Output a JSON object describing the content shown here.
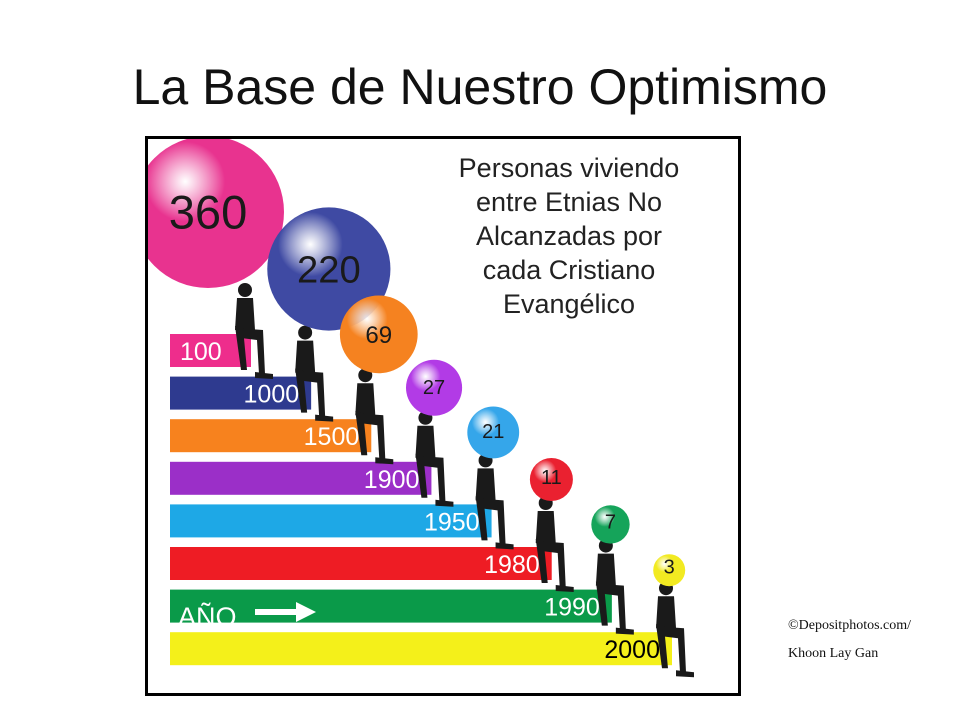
{
  "title": "La Base de Nuestro Optimismo",
  "credit": {
    "line1": "©Depositphotos.com/",
    "line2": "Khoon Lay Gan"
  },
  "chart_data": {
    "type": "bar",
    "title": "Personas viviendo entre Etnias No Alcanzadas por cada Cristiano Evangélico",
    "title_lines": [
      "Personas viviendo",
      "entre Etnias No",
      "Alcanzadas por",
      "cada Cristiano",
      "Evangélico"
    ],
    "axis_label": "AÑO",
    "categories": [
      "100",
      "1000",
      "1500",
      "1900",
      "1950",
      "1980",
      "1990",
      "2000"
    ],
    "values": [
      360,
      220,
      69,
      27,
      21,
      11,
      7,
      3
    ],
    "bar_colors": [
      "#ee2d8c",
      "#2e3a8f",
      "#f7821e",
      "#9b2fc8",
      "#1ea8e6",
      "#ee1c24",
      "#0a9a49",
      "#f4f01a"
    ],
    "bubble_colors": [
      "#e8338f",
      "#3f4aa3",
      "#f58220",
      "#b23be6",
      "#35a6ea",
      "#ea2130",
      "#15a45a",
      "#f2ea21"
    ],
    "label_colors": [
      "#ffffff",
      "#ffffff",
      "#ffffff",
      "#ffffff",
      "#ffffff",
      "#ffffff",
      "#ffffff",
      "#000000"
    ]
  }
}
